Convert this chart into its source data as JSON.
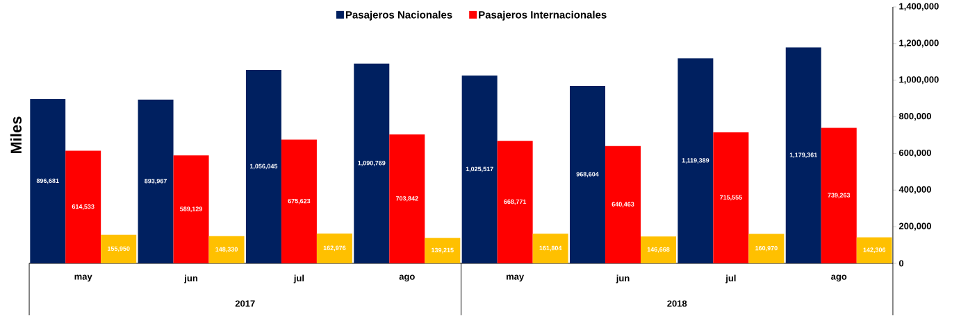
{
  "chart_data": {
    "type": "bar",
    "ylabel": "Miles",
    "categories": [
      "may",
      "jun",
      "jul",
      "ago",
      "may",
      "jun",
      "jul",
      "ago"
    ],
    "annotations": [
      "2017",
      "2018"
    ],
    "series": [
      {
        "name": "Pasajeros Nacionales",
        "color": "#002060",
        "values": [
          896681,
          893967,
          1056045,
          1090769,
          1025517,
          968604,
          1119389,
          1179361
        ],
        "value_labels": [
          "896,681",
          "893,967",
          "1,056,045",
          "1,090,769",
          "1,025,517",
          "968,604",
          "1,119,389",
          "1,179,361"
        ]
      },
      {
        "name": "Pasajeros Internacionales",
        "color": "#ff0000",
        "values": [
          614533,
          589129,
          675623,
          703842,
          668771,
          640463,
          715555,
          739263
        ],
        "value_labels": [
          "614,533",
          "589,129",
          "675,623",
          "703,842",
          "668,771",
          "640,463",
          "715,555",
          "739,263"
        ]
      },
      {
        "color": "#ffc000",
        "values": [
          155950,
          148330,
          162976,
          139215,
          161804,
          146668,
          160970,
          142306
        ],
        "value_labels": [
          "155,950",
          "148,330",
          "162,976",
          "139,215",
          "161,804",
          "146,668",
          "160,970",
          "142,306"
        ]
      }
    ],
    "ylim": [
      0,
      1400000
    ],
    "yticks": [
      0,
      {
        "value": 200000,
        "label": "200,000"
      },
      {
        "value": 400000,
        "label": "400,000"
      },
      {
        "value": 600000,
        "label": "600,000"
      },
      {
        "value": 800000,
        "label": "800,000"
      },
      {
        "value": 1000000,
        "label": "1,000,000"
      },
      {
        "value": 1200000,
        "label": "1,200,000"
      },
      {
        "value": 1400000,
        "label": "1,400,000"
      }
    ],
    "legend": "top",
    "grid": false
  }
}
